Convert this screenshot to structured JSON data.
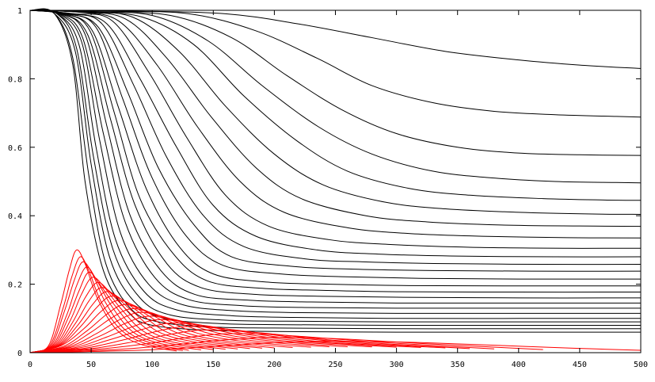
{
  "chart_data": {
    "type": "line",
    "title": "",
    "xlabel": "",
    "ylabel": "",
    "xlim": [
      0,
      500
    ],
    "ylim": [
      0,
      1
    ],
    "x_ticks": [
      0,
      50,
      100,
      150,
      200,
      250,
      300,
      350,
      400,
      450,
      500
    ],
    "y_ticks": [
      0,
      0.2,
      0.4,
      0.6,
      0.8,
      1
    ],
    "x_tick_labels": [
      "0",
      "50",
      "100",
      "150",
      "200",
      "250",
      "300",
      "350",
      "400",
      "450",
      "500"
    ],
    "y_tick_labels": [
      "0",
      "0.2",
      "0.4",
      "0.6",
      "0.8",
      "1"
    ],
    "grid": false,
    "legend": "none",
    "colors": {
      "decay_series": "#000000",
      "pulse_series": "#ff0000"
    },
    "decay_series": [
      {
        "x": [
          0,
          20,
          35,
          45,
          60,
          80,
          100,
          150,
          200,
          300,
          400,
          500
        ],
        "y": [
          1,
          0.99,
          0.84,
          0.5,
          0.24,
          0.12,
          0.08,
          0.065,
          0.062,
          0.06,
          0.06,
          0.06
        ]
      },
      {
        "x": [
          0,
          20,
          35,
          48,
          62,
          82,
          105,
          150,
          200,
          300,
          400,
          500
        ],
        "y": [
          1,
          0.99,
          0.86,
          0.52,
          0.26,
          0.13,
          0.09,
          0.075,
          0.072,
          0.07,
          0.07,
          0.07
        ]
      },
      {
        "x": [
          0,
          20,
          37,
          50,
          65,
          85,
          110,
          155,
          200,
          300,
          400,
          500
        ],
        "y": [
          1,
          0.99,
          0.88,
          0.55,
          0.28,
          0.15,
          0.1,
          0.085,
          0.082,
          0.08,
          0.08,
          0.08
        ]
      },
      {
        "x": [
          0,
          22,
          38,
          52,
          68,
          90,
          115,
          160,
          210,
          300,
          400,
          500
        ],
        "y": [
          1,
          0.99,
          0.89,
          0.57,
          0.3,
          0.16,
          0.11,
          0.095,
          0.092,
          0.09,
          0.09,
          0.09
        ]
      },
      {
        "x": [
          0,
          22,
          40,
          54,
          70,
          93,
          120,
          165,
          215,
          300,
          400,
          500
        ],
        "y": [
          1,
          0.99,
          0.9,
          0.6,
          0.33,
          0.18,
          0.125,
          0.108,
          0.103,
          0.1,
          0.1,
          0.1
        ]
      },
      {
        "x": [
          0,
          23,
          42,
          57,
          74,
          97,
          125,
          170,
          220,
          300,
          400,
          500
        ],
        "y": [
          1,
          0.99,
          0.91,
          0.62,
          0.35,
          0.2,
          0.14,
          0.122,
          0.117,
          0.115,
          0.115,
          0.115
        ]
      },
      {
        "x": [
          0,
          24,
          43,
          60,
          78,
          102,
          130,
          175,
          225,
          300,
          400,
          500
        ],
        "y": [
          1,
          0.99,
          0.92,
          0.64,
          0.38,
          0.22,
          0.155,
          0.137,
          0.132,
          0.13,
          0.13,
          0.13
        ]
      },
      {
        "x": [
          0,
          25,
          45,
          63,
          82,
          107,
          135,
          180,
          230,
          300,
          400,
          500
        ],
        "y": [
          1,
          0.99,
          0.93,
          0.66,
          0.4,
          0.24,
          0.17,
          0.153,
          0.148,
          0.145,
          0.145,
          0.145
        ]
      },
      {
        "x": [
          0,
          26,
          47,
          66,
          86,
          112,
          140,
          185,
          235,
          300,
          400,
          500
        ],
        "y": [
          1,
          0.99,
          0.93,
          0.68,
          0.43,
          0.26,
          0.19,
          0.17,
          0.165,
          0.162,
          0.16,
          0.16
        ]
      },
      {
        "x": [
          0,
          27,
          49,
          69,
          90,
          117,
          145,
          190,
          240,
          300,
          400,
          500
        ],
        "y": [
          1,
          0.99,
          0.94,
          0.7,
          0.45,
          0.29,
          0.21,
          0.188,
          0.182,
          0.178,
          0.177,
          0.177
        ]
      },
      {
        "x": [
          0,
          28,
          51,
          72,
          95,
          122,
          150,
          195,
          245,
          310,
          400,
          500
        ],
        "y": [
          1,
          0.99,
          0.94,
          0.72,
          0.48,
          0.31,
          0.23,
          0.206,
          0.2,
          0.196,
          0.195,
          0.195
        ]
      },
      {
        "x": [
          0,
          29,
          54,
          76,
          100,
          128,
          158,
          205,
          255,
          320,
          400,
          500
        ],
        "y": [
          1,
          0.99,
          0.95,
          0.74,
          0.51,
          0.34,
          0.255,
          0.23,
          0.222,
          0.217,
          0.215,
          0.215
        ]
      },
      {
        "x": [
          0,
          30,
          56,
          80,
          105,
          135,
          165,
          215,
          265,
          330,
          410,
          500
        ],
        "y": [
          1,
          0.99,
          0.95,
          0.76,
          0.54,
          0.37,
          0.28,
          0.252,
          0.244,
          0.24,
          0.238,
          0.238
        ]
      },
      {
        "x": [
          0,
          32,
          59,
          85,
          112,
          142,
          175,
          225,
          275,
          340,
          420,
          500
        ],
        "y": [
          1,
          0.99,
          0.96,
          0.78,
          0.57,
          0.4,
          0.31,
          0.274,
          0.265,
          0.26,
          0.258,
          0.258
        ]
      },
      {
        "x": [
          0,
          34,
          63,
          90,
          120,
          150,
          185,
          235,
          285,
          350,
          430,
          500
        ],
        "y": [
          1,
          0.99,
          0.96,
          0.8,
          0.6,
          0.43,
          0.34,
          0.3,
          0.288,
          0.282,
          0.28,
          0.28
        ]
      },
      {
        "x": [
          0,
          36,
          67,
          97,
          128,
          160,
          195,
          245,
          295,
          360,
          440,
          500
        ],
        "y": [
          1,
          0.99,
          0.97,
          0.82,
          0.63,
          0.46,
          0.37,
          0.33,
          0.316,
          0.308,
          0.305,
          0.305
        ]
      },
      {
        "x": [
          0,
          38,
          72,
          104,
          137,
          172,
          208,
          260,
          310,
          370,
          440,
          500
        ],
        "y": [
          1,
          0.995,
          0.97,
          0.84,
          0.66,
          0.5,
          0.41,
          0.365,
          0.348,
          0.34,
          0.336,
          0.335
        ]
      },
      {
        "x": [
          0,
          40,
          78,
          112,
          148,
          185,
          222,
          275,
          325,
          385,
          450,
          500
        ],
        "y": [
          1,
          0.995,
          0.975,
          0.86,
          0.69,
          0.54,
          0.45,
          0.4,
          0.382,
          0.373,
          0.37,
          0.369
        ]
      },
      {
        "x": [
          0,
          42,
          84,
          122,
          160,
          200,
          240,
          290,
          340,
          400,
          460,
          500
        ],
        "y": [
          1,
          0.995,
          0.98,
          0.88,
          0.72,
          0.58,
          0.49,
          0.44,
          0.42,
          0.41,
          0.405,
          0.404
        ]
      },
      {
        "x": [
          0,
          45,
          92,
          134,
          175,
          218,
          260,
          310,
          360,
          420,
          470,
          500
        ],
        "y": [
          1,
          0.995,
          0.98,
          0.9,
          0.75,
          0.62,
          0.53,
          0.48,
          0.46,
          0.45,
          0.446,
          0.445
        ]
      },
      {
        "x": [
          0,
          48,
          100,
          146,
          190,
          236,
          280,
          330,
          380,
          430,
          480,
          500
        ],
        "y": [
          1,
          0.995,
          0.985,
          0.91,
          0.78,
          0.66,
          0.58,
          0.53,
          0.51,
          0.5,
          0.497,
          0.496
        ]
      },
      {
        "x": [
          0,
          55,
          115,
          165,
          210,
          255,
          300,
          350,
          400,
          450,
          500
        ],
        "y": [
          1,
          0.995,
          0.985,
          0.92,
          0.81,
          0.71,
          0.64,
          0.6,
          0.583,
          0.578,
          0.576
        ]
      },
      {
        "x": [
          0,
          65,
          130,
          185,
          235,
          280,
          330,
          380,
          430,
          480,
          500
        ],
        "y": [
          1,
          0.997,
          0.99,
          0.94,
          0.86,
          0.78,
          0.73,
          0.705,
          0.695,
          0.69,
          0.688
        ]
      },
      {
        "x": [
          0,
          80,
          160,
          220,
          280,
          340,
          400,
          450,
          500
        ],
        "y": [
          1,
          0.998,
          0.99,
          0.96,
          0.92,
          0.88,
          0.855,
          0.84,
          0.83
        ]
      }
    ],
    "pulse_series": [
      {
        "x": [
          0,
          15,
          25,
          32,
          38,
          45,
          55,
          70,
          90,
          120
        ],
        "y": [
          0,
          0.02,
          0.14,
          0.24,
          0.3,
          0.26,
          0.16,
          0.07,
          0.025,
          0.005
        ]
      },
      {
        "x": [
          0,
          16,
          27,
          34,
          41,
          48,
          58,
          74,
          95,
          125
        ],
        "y": [
          0,
          0.02,
          0.13,
          0.22,
          0.28,
          0.24,
          0.15,
          0.068,
          0.026,
          0.006
        ]
      },
      {
        "x": [
          0,
          17,
          28,
          36,
          43,
          51,
          62,
          78,
          100,
          130
        ],
        "y": [
          0,
          0.02,
          0.12,
          0.21,
          0.265,
          0.23,
          0.145,
          0.066,
          0.027,
          0.007
        ]
      },
      {
        "x": [
          0,
          18,
          30,
          38,
          46,
          54,
          66,
          83,
          105,
          140
        ],
        "y": [
          0,
          0.02,
          0.11,
          0.195,
          0.25,
          0.215,
          0.14,
          0.064,
          0.028,
          0.008
        ]
      },
      {
        "x": [
          0,
          19,
          31,
          40,
          48,
          57,
          70,
          88,
          112,
          150
        ],
        "y": [
          0,
          0.02,
          0.1,
          0.18,
          0.235,
          0.2,
          0.135,
          0.062,
          0.029,
          0.009
        ]
      },
      {
        "x": [
          0,
          20,
          33,
          42,
          51,
          61,
          74,
          93,
          118,
          160
        ],
        "y": [
          0,
          0.02,
          0.095,
          0.17,
          0.22,
          0.19,
          0.13,
          0.062,
          0.03,
          0.01
        ]
      },
      {
        "x": [
          0,
          21,
          35,
          45,
          55,
          65,
          79,
          99,
          126,
          170
        ],
        "y": [
          0,
          0.02,
          0.09,
          0.16,
          0.205,
          0.178,
          0.125,
          0.061,
          0.031,
          0.011
        ]
      },
      {
        "x": [
          0,
          22,
          37,
          48,
          58,
          69,
          84,
          105,
          134,
          180
        ],
        "y": [
          0,
          0.02,
          0.085,
          0.15,
          0.19,
          0.168,
          0.12,
          0.061,
          0.032,
          0.012
        ]
      },
      {
        "x": [
          0,
          23,
          39,
          51,
          62,
          74,
          90,
          112,
          142,
          190
        ],
        "y": [
          0,
          0.02,
          0.08,
          0.14,
          0.178,
          0.158,
          0.116,
          0.06,
          0.033,
          0.013
        ]
      },
      {
        "x": [
          0,
          24,
          41,
          54,
          66,
          79,
          96,
          119,
          150,
          200
        ],
        "y": [
          0,
          0.02,
          0.075,
          0.13,
          0.165,
          0.148,
          0.11,
          0.06,
          0.034,
          0.014
        ]
      },
      {
        "x": [
          0,
          25,
          44,
          58,
          71,
          85,
          103,
          127,
          160,
          215
        ],
        "y": [
          0,
          0.02,
          0.07,
          0.12,
          0.152,
          0.138,
          0.104,
          0.059,
          0.034,
          0.015
        ]
      },
      {
        "x": [
          0,
          27,
          47,
          62,
          76,
          91,
          110,
          136,
          172,
          230
        ],
        "y": [
          0,
          0.018,
          0.065,
          0.11,
          0.14,
          0.128,
          0.098,
          0.058,
          0.034,
          0.016
        ]
      },
      {
        "x": [
          0,
          29,
          50,
          66,
          82,
          98,
          118,
          146,
          185,
          245
        ],
        "y": [
          0,
          0.017,
          0.06,
          0.1,
          0.128,
          0.118,
          0.092,
          0.057,
          0.034,
          0.017
        ]
      },
      {
        "x": [
          0,
          31,
          54,
          71,
          88,
          105,
          127,
          157,
          198,
          260
        ],
        "y": [
          0,
          0.016,
          0.055,
          0.092,
          0.117,
          0.109,
          0.086,
          0.055,
          0.034,
          0.017
        ]
      },
      {
        "x": [
          0,
          33,
          58,
          77,
          95,
          114,
          137,
          170,
          212,
          280
        ],
        "y": [
          0,
          0.015,
          0.05,
          0.084,
          0.106,
          0.1,
          0.08,
          0.053,
          0.033,
          0.017
        ]
      },
      {
        "x": [
          0,
          36,
          63,
          84,
          103,
          124,
          149,
          184,
          228,
          300
        ],
        "y": [
          0,
          0.014,
          0.046,
          0.076,
          0.096,
          0.091,
          0.074,
          0.05,
          0.032,
          0.016
        ]
      },
      {
        "x": [
          0,
          39,
          69,
          92,
          113,
          136,
          163,
          200,
          246,
          320
        ],
        "y": [
          0,
          0.013,
          0.042,
          0.068,
          0.086,
          0.082,
          0.068,
          0.047,
          0.03,
          0.015
        ]
      },
      {
        "x": [
          0,
          43,
          76,
          101,
          125,
          150,
          180,
          220,
          268,
          340
        ],
        "y": [
          0,
          0.012,
          0.037,
          0.06,
          0.076,
          0.073,
          0.061,
          0.043,
          0.028,
          0.014
        ]
      },
      {
        "x": [
          0,
          48,
          85,
          112,
          139,
          167,
          200,
          243,
          295,
          360
        ],
        "y": [
          0,
          0.011,
          0.032,
          0.052,
          0.066,
          0.064,
          0.054,
          0.038,
          0.025,
          0.012
        ]
      },
      {
        "x": [
          0,
          55,
          97,
          128,
          158,
          190,
          228,
          275,
          330,
          380
        ],
        "y": [
          0,
          0.01,
          0.027,
          0.044,
          0.055,
          0.054,
          0.046,
          0.033,
          0.021,
          0.011
        ]
      },
      {
        "x": [
          0,
          65,
          115,
          152,
          188,
          225,
          268,
          320,
          375,
          420
        ],
        "y": [
          0,
          0.008,
          0.022,
          0.035,
          0.044,
          0.044,
          0.038,
          0.027,
          0.017,
          0.009
        ]
      },
      {
        "x": [
          0,
          80,
          140,
          185,
          230,
          275,
          325,
          385,
          445,
          500
        ],
        "y": [
          0,
          0.006,
          0.016,
          0.026,
          0.033,
          0.033,
          0.029,
          0.021,
          0.013,
          0.007
        ]
      }
    ]
  }
}
